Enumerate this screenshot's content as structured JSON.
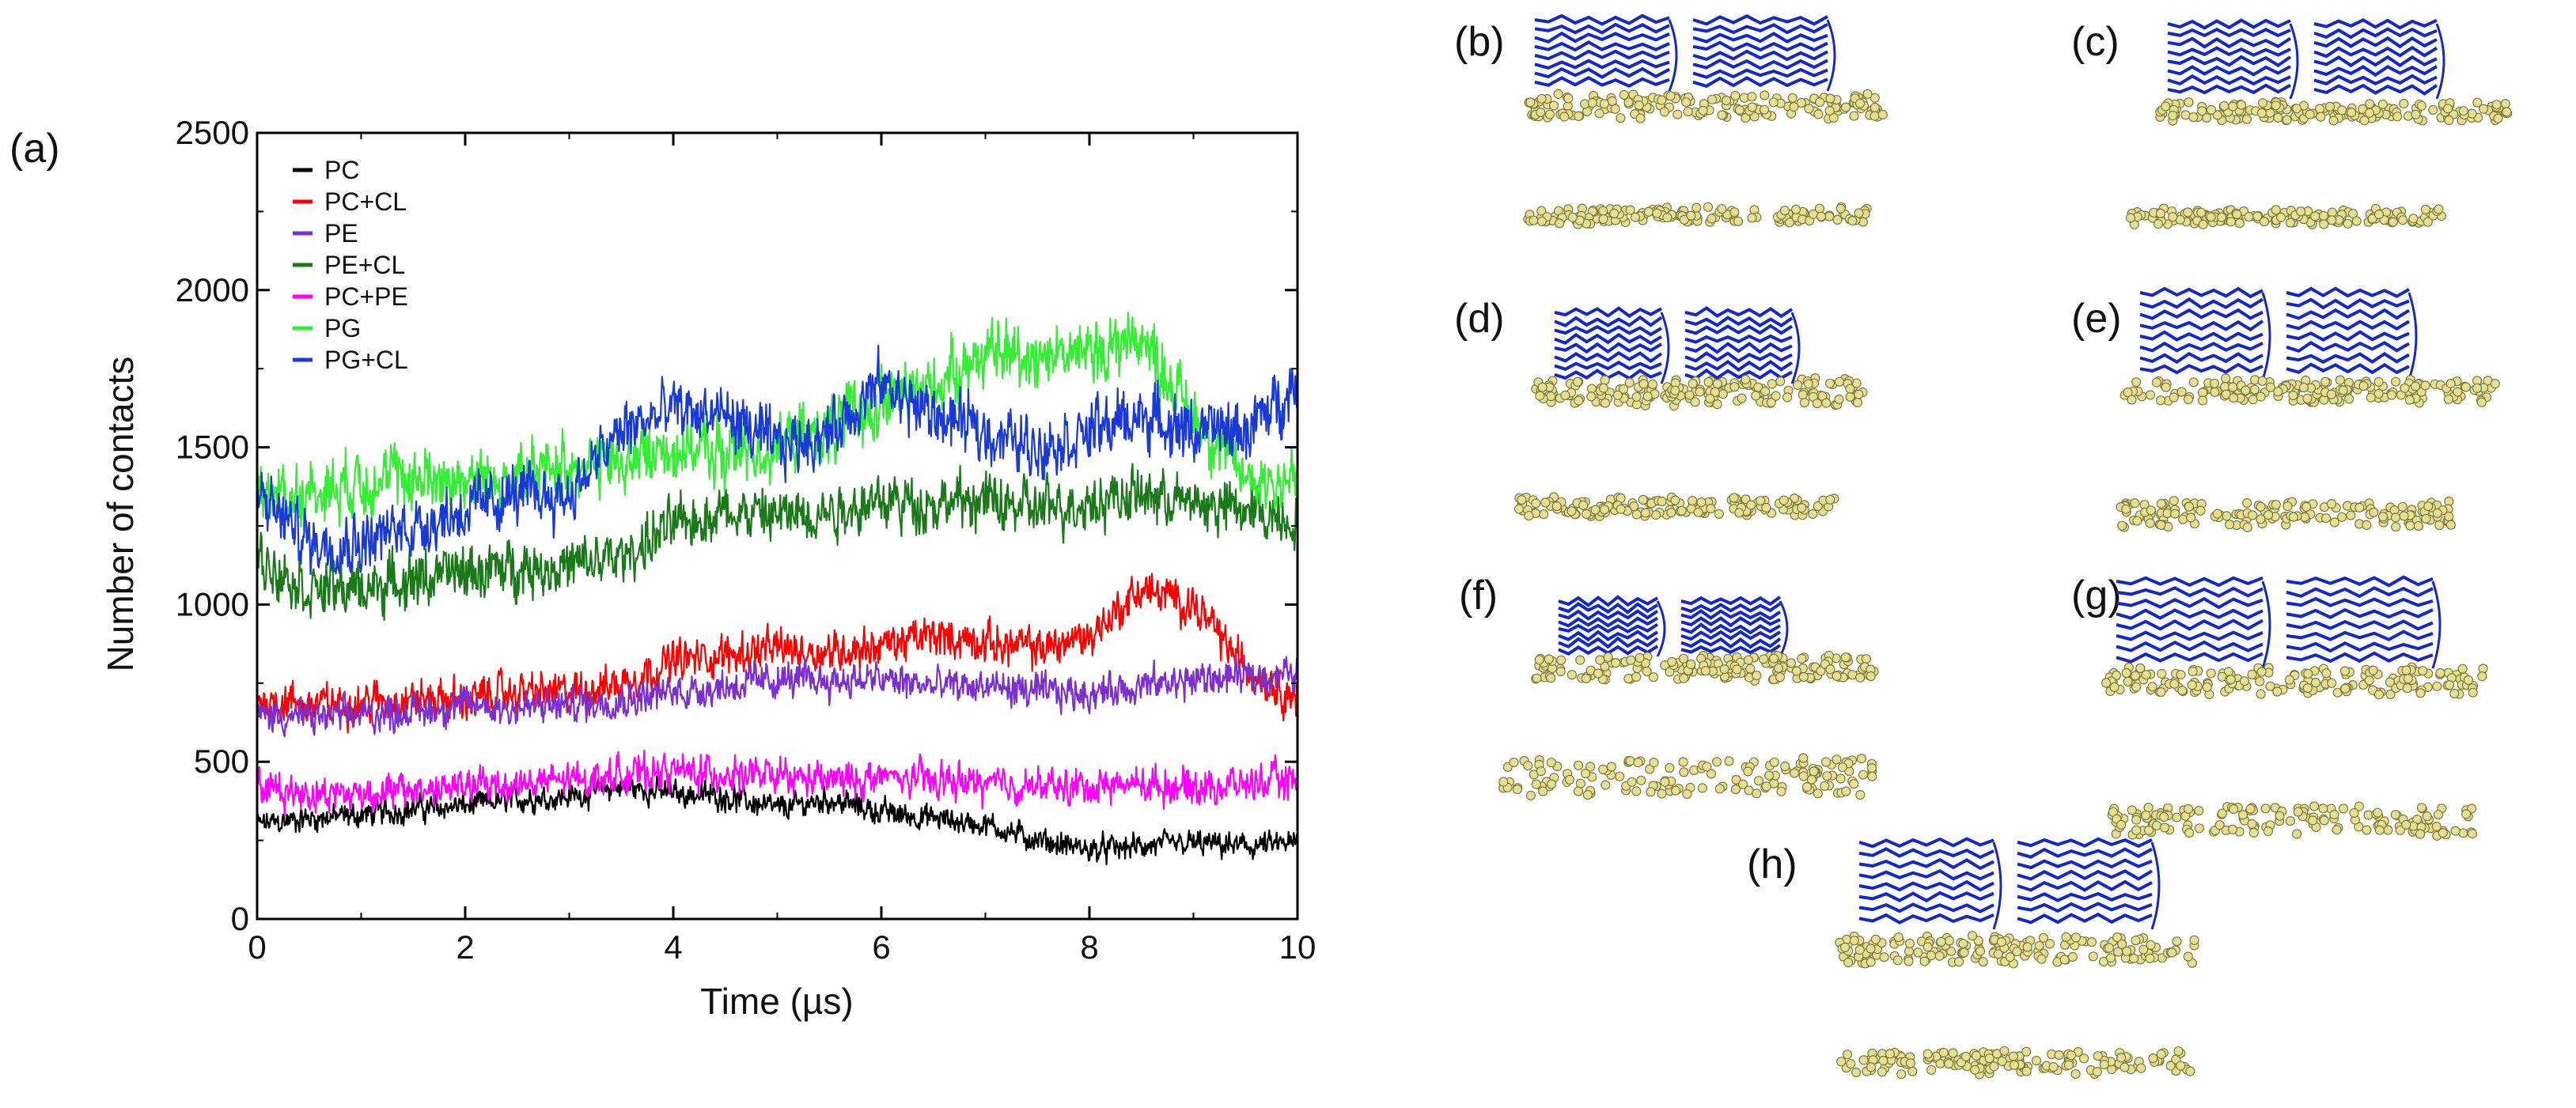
{
  "chart_data": {
    "type": "line",
    "panel_label": "(a)",
    "title": "",
    "xlabel": "Time (µs)",
    "ylabel": "Number of contacts",
    "xlim": [
      0,
      10
    ],
    "ylim": [
      0,
      2500
    ],
    "xticks": [
      0,
      2,
      4,
      6,
      8,
      10
    ],
    "yticks": [
      0,
      500,
      1000,
      1500,
      2000,
      2500
    ],
    "grid": false,
    "legend_position": "top-left",
    "x": [
      0,
      0.5,
      1,
      1.5,
      2,
      2.5,
      3,
      3.5,
      4,
      4.5,
      5,
      5.5,
      6,
      6.5,
      7,
      7.5,
      8,
      8.5,
      9,
      9.5,
      10
    ],
    "series": [
      {
        "name": "PC",
        "color": "#000000",
        "noise": 50,
        "values": [
          300,
          320,
          330,
          350,
          360,
          380,
          390,
          420,
          400,
          390,
          350,
          380,
          340,
          320,
          300,
          250,
          220,
          230,
          240,
          230,
          240
        ]
      },
      {
        "name": "PC+CL",
        "color": "#ff0000",
        "noise": 80,
        "values": [
          700,
          680,
          690,
          700,
          700,
          720,
          720,
          750,
          820,
          840,
          860,
          850,
          870,
          900,
          880,
          860,
          900,
          1050,
          1000,
          800,
          700
        ]
      },
      {
        "name": "PE",
        "color": "#7b2fd0",
        "noise": 70,
        "values": [
          650,
          640,
          650,
          660,
          680,
          670,
          680,
          700,
          720,
          740,
          760,
          760,
          760,
          740,
          740,
          720,
          720,
          740,
          760,
          770,
          780
        ]
      },
      {
        "name": "PE+CL",
        "color": "#1a7a1a",
        "noise": 110,
        "values": [
          1150,
          1050,
          1050,
          1080,
          1100,
          1120,
          1120,
          1150,
          1250,
          1300,
          1280,
          1300,
          1330,
          1320,
          1330,
          1300,
          1330,
          1350,
          1320,
          1300,
          1270
        ]
      },
      {
        "name": "PC+PE",
        "color": "#ff00ff",
        "noise": 70,
        "values": [
          420,
          400,
          400,
          410,
          420,
          430,
          440,
          460,
          470,
          460,
          450,
          440,
          450,
          440,
          430,
          420,
          420,
          430,
          420,
          430,
          440
        ]
      },
      {
        "name": "PG",
        "color": "#33ee33",
        "noise": 130,
        "values": [
          1350,
          1350,
          1400,
          1400,
          1400,
          1400,
          1450,
          1450,
          1500,
          1480,
          1500,
          1550,
          1650,
          1700,
          1800,
          1800,
          1800,
          1850,
          1600,
          1400,
          1400
        ]
      },
      {
        "name": "PG+CL",
        "color": "#1a3ad8",
        "noise": 120,
        "values": [
          1350,
          1200,
          1200,
          1250,
          1300,
          1350,
          1350,
          1550,
          1620,
          1600,
          1500,
          1550,
          1700,
          1600,
          1550,
          1500,
          1550,
          1600,
          1550,
          1550,
          1700
        ]
      }
    ]
  },
  "snapshots": [
    {
      "label": "(b)"
    },
    {
      "label": "(c)"
    },
    {
      "label": "(d)"
    },
    {
      "label": "(e)"
    },
    {
      "label": "(f)"
    },
    {
      "label": "(g)"
    },
    {
      "label": "(h)"
    }
  ],
  "colors": {
    "protein": "#1428c8",
    "lipid_fill": "#e6e094",
    "lipid_stroke": "#7d7a3c"
  }
}
